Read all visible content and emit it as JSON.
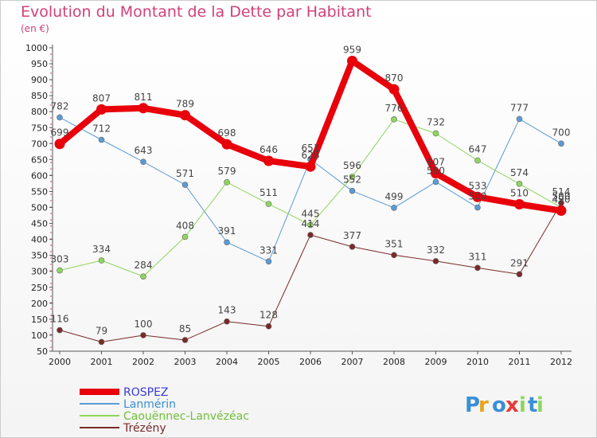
{
  "chart_data": {
    "type": "line",
    "title": "Evolution du Montant de la Dette par Habitant",
    "unit_label": "(en €)",
    "x": [
      "2000",
      "2001",
      "2002",
      "2003",
      "2004",
      "2005",
      "2006",
      "2007",
      "2008",
      "2009",
      "2010",
      "2011",
      "2012"
    ],
    "y_ticks": [
      50,
      100,
      150,
      200,
      250,
      300,
      350,
      400,
      450,
      500,
      550,
      600,
      650,
      700,
      750,
      800,
      850,
      900,
      950,
      1000
    ],
    "ylim": [
      50,
      1000
    ],
    "grid": false,
    "legend_position": "bottom-left",
    "series": [
      {
        "name": "ROSPEZ",
        "color": "#e8000b",
        "width": 8,
        "label_color": "#3a3adb",
        "values": [
          699,
          807,
          811,
          789,
          698,
          646,
          628,
          959,
          870,
          607,
          533,
          510,
          490
        ],
        "labels": [
          "699",
          "807",
          "811",
          "789",
          "698",
          "646",
          "628",
          "959",
          "870",
          "607",
          "533",
          "510",
          "490"
        ]
      },
      {
        "name": "Lanmérin",
        "color": "#5b9bd5",
        "width": 1,
        "label_color": "#3a8fd6",
        "values": [
          782,
          712,
          643,
          571,
          391,
          331,
          651,
          552,
          499,
          580,
          500,
          777,
          700
        ],
        "labels": [
          "782",
          "712",
          "643",
          "571",
          "391",
          "331",
          "651",
          "552",
          "499",
          "580",
          "500",
          "777",
          "700"
        ]
      },
      {
        "name": "Caouënnec-Lanvézéac",
        "color": "#8fd65c",
        "width": 1,
        "label_color": "#6fbf3a",
        "values": [
          303,
          334,
          284,
          408,
          579,
          511,
          445,
          596,
          776,
          732,
          647,
          574,
          500
        ],
        "labels": [
          "303",
          "334",
          "284",
          "408",
          "579",
          "511",
          "445",
          "596",
          "776",
          "732",
          "647",
          "574",
          "500"
        ]
      },
      {
        "name": "Trézény",
        "color": "#7a2a2a",
        "width": 1,
        "label_color": "#7a2a2a",
        "values": [
          116,
          79,
          100,
          85,
          143,
          128,
          414,
          377,
          351,
          332,
          311,
          291,
          514
        ],
        "labels": [
          "116",
          "79",
          "100",
          "85",
          "143",
          "128",
          "414",
          "377",
          "351",
          "332",
          "311",
          "291",
          "514"
        ]
      }
    ]
  },
  "logo": {
    "text": "Proxiti",
    "letters": [
      "P",
      "r",
      "o",
      "x",
      "i",
      "t",
      "i"
    ],
    "colors": [
      "#3a8fd6",
      "#e8a317",
      "#3a8fd6",
      "#e83a3a",
      "#8fd65c",
      "#3a8fd6",
      "#8fd65c"
    ]
  }
}
